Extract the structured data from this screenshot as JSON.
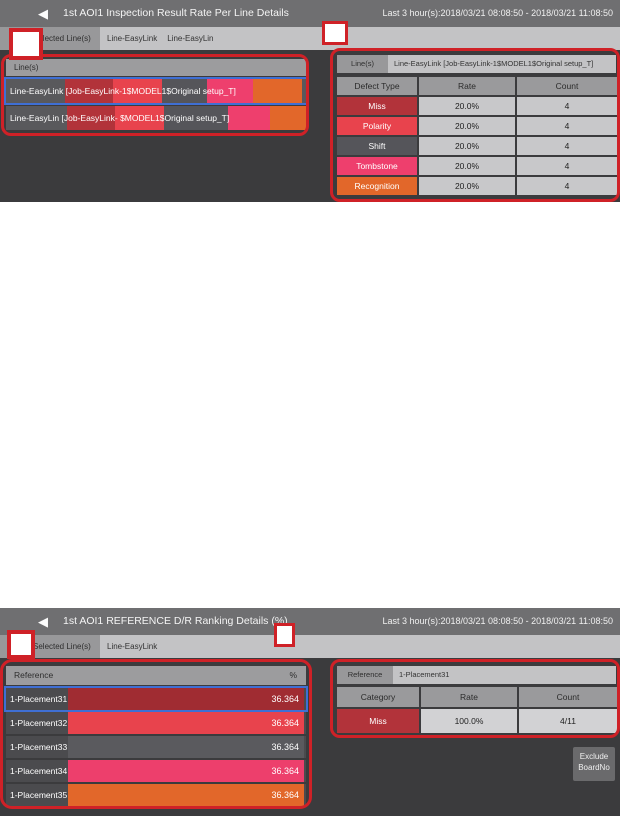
{
  "colors": {
    "annotation": "#cf2127",
    "selection_border": "#3f6fd4",
    "defects": {
      "miss": "#b2333a",
      "polarity": "#e8434d",
      "shift": "#55555a",
      "tombstone": "#ee3f6d",
      "recognition": "#e2672a"
    },
    "ranking_bars": [
      "#a02c32",
      "#e8434d",
      "#5a5a5e",
      "#ed3f6c",
      "#e2672a"
    ]
  },
  "top_panel": {
    "back_icon": "◀",
    "title": "1st AOI1 Inspection Result Rate Per Line Details",
    "time_range": "Last 3 hour(s):2018/03/21 08:08:50 - 2018/03/21 11:08:50",
    "selected_lines_label": "Selected Line(s)",
    "line_tabs": [
      "Line-EasyLink",
      "Line-EasyLin"
    ],
    "lines_section": {
      "header": "Line(s)",
      "rows": [
        {
          "label": "Line-EasyLink [Job-EasyLink-1$MODEL1$Original setup_T]"
        },
        {
          "label": "Line-EasyLin [Job-EasyLink- $MODEL1$Original setup_T]"
        }
      ]
    },
    "detail": {
      "tab_label": "Line(s)",
      "tab_value": "Line-EasyLink [Job-EasyLink-1$MODEL1$Original setup_T]",
      "headers": [
        "Defect Type",
        "Rate",
        "Count"
      ],
      "rows": [
        {
          "type": "Miss",
          "rate": "20.0%",
          "count": "4"
        },
        {
          "type": "Polarity",
          "rate": "20.0%",
          "count": "4"
        },
        {
          "type": "Shift",
          "rate": "20.0%",
          "count": "4"
        },
        {
          "type": "Tombstone",
          "rate": "20.0%",
          "count": "4"
        },
        {
          "type": "Recognition",
          "rate": "20.0%",
          "count": "4"
        }
      ]
    }
  },
  "bottom_panel": {
    "back_icon": "◀",
    "title": "1st AOI1 REFERENCE D/R Ranking Details (%)",
    "time_range": "Last 3 hour(s):2018/03/21 08:08:50 - 2018/03/21 11:08:50",
    "selected_lines_label": "Selected Line(s)",
    "line_tabs": [
      "Line-EasyLink"
    ],
    "ranking_section": {
      "header": "Reference",
      "percent_header": "%",
      "rows": [
        {
          "label": "1-Placement31",
          "value": "36.364"
        },
        {
          "label": "1-Placement32",
          "value": "36.364"
        },
        {
          "label": "1-Placement33",
          "value": "36.364"
        },
        {
          "label": "1-Placement34",
          "value": "36.364"
        },
        {
          "label": "1-Placement35",
          "value": "36.364"
        }
      ]
    },
    "detail": {
      "tab_label": "Reference",
      "tab_value": "1-Placement31",
      "headers": [
        "Category",
        "Rate",
        "Count"
      ],
      "rows": [
        {
          "type": "Miss",
          "rate": "100.0%",
          "count": "4/11"
        }
      ]
    },
    "exclude_button": {
      "line1": "Exclude",
      "line2": "BoardNo"
    }
  }
}
